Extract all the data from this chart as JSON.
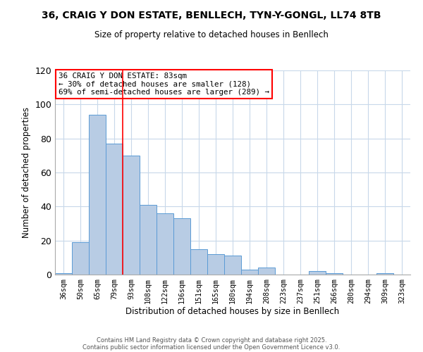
{
  "title": "36, CRAIG Y DON ESTATE, BENLLECH, TYN-Y-GONGL, LL74 8TB",
  "subtitle": "Size of property relative to detached houses in Benllech",
  "xlabel": "Distribution of detached houses by size in Benllech",
  "ylabel": "Number of detached properties",
  "categories": [
    "36sqm",
    "50sqm",
    "65sqm",
    "79sqm",
    "93sqm",
    "108sqm",
    "122sqm",
    "136sqm",
    "151sqm",
    "165sqm",
    "180sqm",
    "194sqm",
    "208sqm",
    "223sqm",
    "237sqm",
    "251sqm",
    "266sqm",
    "280sqm",
    "294sqm",
    "309sqm",
    "323sqm"
  ],
  "values": [
    1,
    19,
    94,
    77,
    70,
    41,
    36,
    33,
    15,
    12,
    11,
    3,
    4,
    0,
    0,
    2,
    1,
    0,
    0,
    1,
    0
  ],
  "bar_color": "#b8cce4",
  "bar_edge_color": "#5b9bd5",
  "ylim": [
    0,
    120
  ],
  "yticks": [
    0,
    20,
    40,
    60,
    80,
    100,
    120
  ],
  "vline_x_index": 3.5,
  "vline_color": "#ff0000",
  "annotation_title": "36 CRAIG Y DON ESTATE: 83sqm",
  "annotation_line1": "← 30% of detached houses are smaller (128)",
  "annotation_line2": "69% of semi-detached houses are larger (289) →",
  "annotation_box_color": "#ffffff",
  "annotation_border_color": "#ff0000",
  "footnote1": "Contains HM Land Registry data © Crown copyright and database right 2025.",
  "footnote2": "Contains public sector information licensed under the Open Government Licence v3.0.",
  "background_color": "#ffffff",
  "grid_color": "#c8d8ea"
}
